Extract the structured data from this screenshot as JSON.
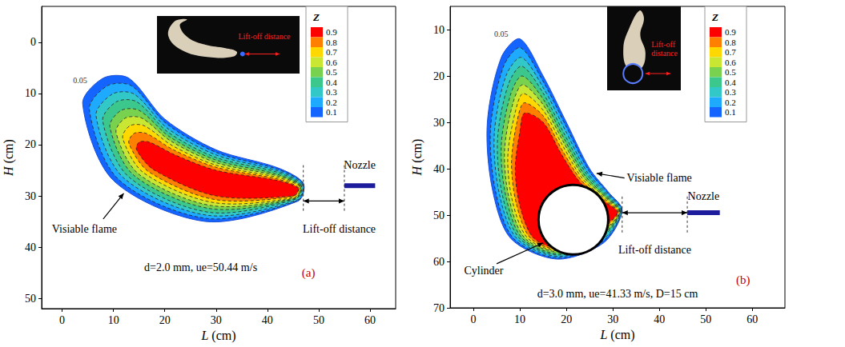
{
  "chart_data": [
    {
      "type": "contour",
      "label": "(a)",
      "xlabel": "L (cm)",
      "ylabel": "H (cm)",
      "xlim": [
        -4,
        65
      ],
      "ylim": [
        -7,
        52
      ],
      "xticks": [
        0,
        10,
        20,
        30,
        40,
        50,
        60
      ],
      "yticks": [
        0,
        10,
        20,
        30,
        40,
        50
      ],
      "grid": false,
      "annotation": "d=2.0 mm, ue=50.44 m/s",
      "texts": {
        "flame": "Visiable flame",
        "lift_off": "Lift-off distance",
        "nozzle": "Nozzle"
      },
      "inset_text": "Lift-off distance",
      "nozzle": {
        "L": [
          55,
          61
        ],
        "H": 28
      },
      "lift_off": [
        47,
        55
      ],
      "colorbar": {
        "title": "Z",
        "values": [
          0.9,
          0.8,
          0.7,
          0.6,
          0.5,
          0.4,
          0.3,
          0.2,
          0.1
        ],
        "colors": [
          "#ff0000",
          "#ff8000",
          "#ffd800",
          "#c8e632",
          "#78d250",
          "#3cc88c",
          "#32c8c8",
          "#1eaaff",
          "#1464ff"
        ]
      },
      "contours": [
        {
          "level": 0.05,
          "points": [
            [
              47,
              27.5
            ],
            [
              42,
              24.5
            ],
            [
              30,
              21
            ],
            [
              20,
              15
            ],
            [
              13,
              7
            ],
            [
              8,
              7
            ],
            [
              4,
              12
            ],
            [
              10,
              27
            ],
            [
              28,
              35
            ],
            [
              46,
              31
            ]
          ]
        },
        {
          "level": 0.1,
          "points": [
            [
              46.9,
              27.6
            ],
            [
              42,
              24.8
            ],
            [
              30,
              21.5
            ],
            [
              20.2,
              15.8
            ],
            [
              13.5,
              8.5
            ],
            [
              8.8,
              8.5
            ],
            [
              5.3,
              13.1
            ],
            [
              11,
              26.8
            ],
            [
              28.2,
              34.4
            ],
            [
              45.9,
              30.9
            ]
          ]
        },
        {
          "level": 0.2,
          "points": [
            [
              46.8,
              27.8
            ],
            [
              42,
              25.1
            ],
            [
              30,
              22
            ],
            [
              20.5,
              16.8
            ],
            [
              14,
              10.1
            ],
            [
              9.8,
              10.1
            ],
            [
              6.6,
              14.3
            ],
            [
              12,
              26.5
            ],
            [
              28.5,
              33.8
            ],
            [
              45.8,
              30.8
            ]
          ]
        },
        {
          "level": 0.3,
          "points": [
            [
              46.6,
              27.9
            ],
            [
              42,
              25.4
            ],
            [
              30,
              22.5
            ],
            [
              20.7,
              17.6
            ],
            [
              14.5,
              11.6
            ],
            [
              10.6,
              11.6
            ],
            [
              7.9,
              15.3
            ],
            [
              13,
              26.3
            ],
            [
              28.7,
              33.2
            ],
            [
              45.6,
              30.6
            ]
          ]
        },
        {
          "level": 0.4,
          "points": [
            [
              46.5,
              28
            ],
            [
              42,
              25.8
            ],
            [
              30,
              23
            ],
            [
              21,
              18.5
            ],
            [
              15,
              13.3
            ],
            [
              11.5,
              13.3
            ],
            [
              9.3,
              16.5
            ],
            [
              14,
              26
            ],
            [
              29,
              32.5
            ],
            [
              45.5,
              30.5
            ]
          ]
        },
        {
          "level": 0.5,
          "points": [
            [
              46.4,
              28.1
            ],
            [
              42,
              26.1
            ],
            [
              30,
              23.5
            ],
            [
              21.2,
              19.3
            ],
            [
              15.5,
              14.8
            ],
            [
              12.3,
              14.8
            ],
            [
              10.5,
              17.6
            ],
            [
              15,
              25.8
            ],
            [
              29.2,
              31.9
            ],
            [
              45.4,
              30.4
            ]
          ]
        },
        {
          "level": 0.6,
          "points": [
            [
              46.3,
              28.2
            ],
            [
              42,
              26.4
            ],
            [
              30,
              24
            ],
            [
              21.5,
              20.2
            ],
            [
              16,
              16.3
            ],
            [
              13.2,
              16.3
            ],
            [
              11.8,
              18.7
            ],
            [
              15.9,
              25.5
            ],
            [
              29.5,
              31.3
            ],
            [
              45.3,
              30.3
            ]
          ]
        },
        {
          "level": 0.7,
          "points": [
            [
              46.1,
              28.4
            ],
            [
              42,
              26.7
            ],
            [
              30,
              24.4
            ],
            [
              21.7,
              21
            ],
            [
              16.4,
              17.8
            ],
            [
              14,
              17.8
            ],
            [
              13,
              19.7
            ],
            [
              16.9,
              25.3
            ],
            [
              29.7,
              30.7
            ],
            [
              45.1,
              30.1
            ]
          ]
        },
        {
          "level": 0.8,
          "points": [
            [
              46,
              28.5
            ],
            [
              42,
              27
            ],
            [
              30,
              25
            ],
            [
              22,
              22
            ],
            [
              17,
              19.5
            ],
            [
              15,
              19.5
            ],
            [
              14.5,
              21
            ],
            [
              18,
              25
            ],
            [
              30,
              30
            ],
            [
              45,
              30
            ]
          ]
        }
      ]
    },
    {
      "type": "contour",
      "label": "(b)",
      "xlabel": "L (cm)",
      "ylabel": "H (cm)",
      "xlim": [
        -5,
        67
      ],
      "ylim": [
        5,
        70
      ],
      "xticks": [
        0,
        10,
        20,
        30,
        40,
        50,
        60
      ],
      "yticks": [
        10,
        20,
        30,
        40,
        50,
        60,
        70
      ],
      "grid": false,
      "annotation": "d=3.0 mm, ue=41.33 m/s, D=15 cm",
      "texts": {
        "flame": "Visiable flame",
        "lift_off": "Lift-off distance",
        "nozzle": "Nozzle"
      },
      "inset_text": "Lift-off distance",
      "nozzle": {
        "L": [
          46,
          53
        ],
        "H": 49.5
      },
      "lift_off": [
        32,
        46
      ],
      "cylinder": {
        "label": "Cylinder",
        "center": [
          21.5,
          51
        ],
        "radius": 7.5
      },
      "colorbar": {
        "title": "Z",
        "values": [
          0.9,
          0.8,
          0.7,
          0.6,
          0.5,
          0.4,
          0.3,
          0.2,
          0.1
        ],
        "colors": [
          "#ff0000",
          "#ff8000",
          "#ffd800",
          "#c8e632",
          "#78d250",
          "#3cc88c",
          "#32c8c8",
          "#1eaaff",
          "#1464ff"
        ]
      },
      "contours": [
        {
          "level": 0.05,
          "points": [
            [
              32,
              49
            ],
            [
              29,
              45
            ],
            [
              25,
              40
            ],
            [
              20,
              30
            ],
            [
              15,
              20
            ],
            [
              10,
              12
            ],
            [
              6,
              16
            ],
            [
              3,
              30
            ],
            [
              4,
              44
            ],
            [
              8,
              55
            ],
            [
              18,
              59.5
            ],
            [
              28,
              56
            ]
          ]
        },
        {
          "level": 0.1,
          "points": [
            [
              31.9,
              49.1
            ],
            [
              28.9,
              45.2
            ],
            [
              24.8,
              40.4
            ],
            [
              19.9,
              30.8
            ],
            [
              15,
              21.2
            ],
            [
              10.1,
              13.9
            ],
            [
              6.5,
              17.9
            ],
            [
              3.7,
              31.2
            ],
            [
              4.7,
              44.5
            ],
            [
              8.6,
              55
            ],
            [
              18.1,
              59.2
            ],
            [
              27.9,
              55.6
            ]
          ]
        },
        {
          "level": 0.2,
          "points": [
            [
              31.8,
              49.1
            ],
            [
              28.8,
              45.5
            ],
            [
              24.5,
              40.8
            ],
            [
              19.8,
              31.8
            ],
            [
              15,
              22.5
            ],
            [
              10.3,
              16
            ],
            [
              7,
              20
            ],
            [
              4.5,
              32.5
            ],
            [
              5.5,
              45
            ],
            [
              9.3,
              55
            ],
            [
              18.3,
              58.9
            ],
            [
              27.8,
              55.3
            ]
          ]
        },
        {
          "level": 0.3,
          "points": [
            [
              31.6,
              49.2
            ],
            [
              28.6,
              45.7
            ],
            [
              24.3,
              41.1
            ],
            [
              19.6,
              32.6
            ],
            [
              15,
              23.7
            ],
            [
              10.4,
              17.9
            ],
            [
              7.5,
              21.9
            ],
            [
              5.2,
              33.7
            ],
            [
              6.2,
              45.5
            ],
            [
              9.9,
              55
            ],
            [
              18.4,
              58.6
            ],
            [
              27.6,
              54.9
            ]
          ]
        },
        {
          "level": 0.4,
          "points": [
            [
              31.5,
              49.3
            ],
            [
              28.5,
              46
            ],
            [
              24,
              41.5
            ],
            [
              19.5,
              33.5
            ],
            [
              15,
              25
            ],
            [
              10.5,
              20
            ],
            [
              8,
              24
            ],
            [
              6,
              35
            ],
            [
              7,
              46
            ],
            [
              10.5,
              55
            ],
            [
              18.5,
              58.3
            ],
            [
              27.5,
              54.5
            ]
          ]
        },
        {
          "level": 0.5,
          "points": [
            [
              31.4,
              49.3
            ],
            [
              28.4,
              46.2
            ],
            [
              23.8,
              41.9
            ],
            [
              19.4,
              34.3
            ],
            [
              15,
              26.2
            ],
            [
              10.6,
              21.9
            ],
            [
              8.5,
              25.9
            ],
            [
              6.7,
              36.2
            ],
            [
              7.7,
              46.5
            ],
            [
              11.1,
              55
            ],
            [
              18.6,
              57.9
            ],
            [
              27.4,
              54.1
            ]
          ]
        },
        {
          "level": 0.6,
          "points": [
            [
              31.3,
              49.4
            ],
            [
              28.3,
              46.5
            ],
            [
              23.5,
              42.2
            ],
            [
              19.3,
              35.2
            ],
            [
              15,
              27.4
            ],
            [
              10.7,
              23.8
            ],
            [
              9,
              27.8
            ],
            [
              7.4,
              37.4
            ],
            [
              8.4,
              47
            ],
            [
              11.7,
              55
            ],
            [
              18.7,
              57.7
            ],
            [
              27.3,
              53.8
            ]
          ]
        },
        {
          "level": 0.7,
          "points": [
            [
              31.1,
              49.4
            ],
            [
              28.1,
              46.7
            ],
            [
              23.3,
              42.6
            ],
            [
              19.1,
              36
            ],
            [
              15,
              28.6
            ],
            [
              10.9,
              25.8
            ],
            [
              9.4,
              29.8
            ],
            [
              8.2,
              38.6
            ],
            [
              9.2,
              47.4
            ],
            [
              12.3,
              55
            ],
            [
              18.9,
              57.4
            ],
            [
              27.1,
              53.4
            ]
          ]
        },
        {
          "level": 0.8,
          "points": [
            [
              31,
              49.5
            ],
            [
              28,
              47
            ],
            [
              23,
              43
            ],
            [
              19,
              37
            ],
            [
              15,
              30
            ],
            [
              11,
              28
            ],
            [
              10,
              32
            ],
            [
              9,
              40
            ],
            [
              10,
              48
            ],
            [
              13,
              55
            ],
            [
              19,
              57
            ],
            [
              27,
              53
            ]
          ]
        }
      ]
    }
  ]
}
